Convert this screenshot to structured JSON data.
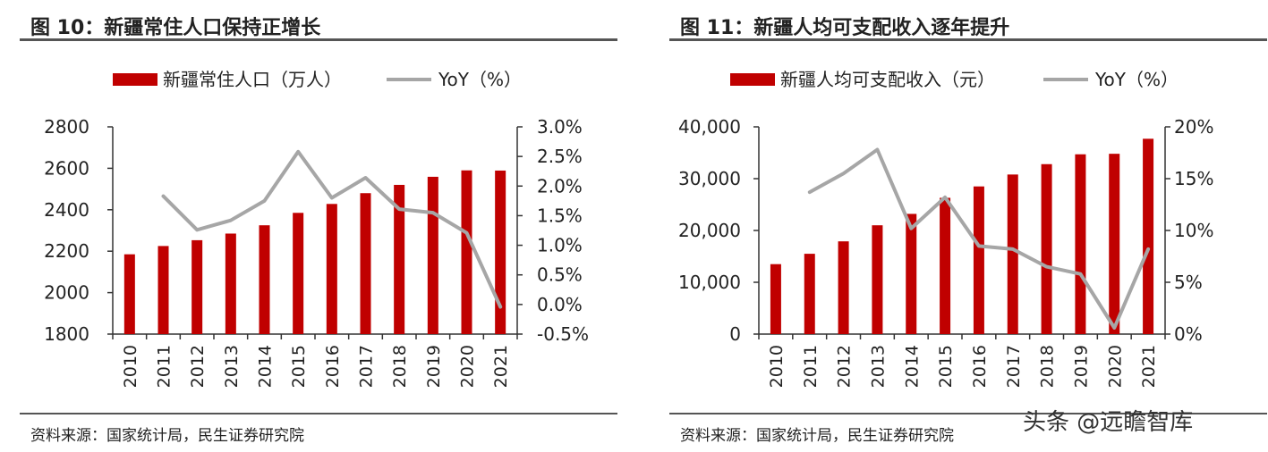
{
  "panels": [
    {
      "title": "图 10：新疆常住人口保持正增长",
      "source": "资料来源：国家统计局，民生证券研究院",
      "legend": {
        "bar": "新疆常住人口（万人）",
        "line": "YoY（%）"
      }
    },
    {
      "title": "图 11：新疆人均可支配收入逐年提升",
      "source": "资料来源：国家统计局，民生证券研究院",
      "legend": {
        "bar": "新疆人均可支配收入（元）",
        "line": "YoY（%）"
      }
    }
  ],
  "watermark": "头条 @远瞻智库",
  "colors": {
    "bar": "#c00000",
    "line": "#a6a6a6",
    "axis": "#333333",
    "rule": "#555555"
  },
  "chart_data": [
    {
      "type": "bar",
      "title": "图 10：新疆常住人口保持正增长",
      "categories": [
        "2010",
        "2011",
        "2012",
        "2013",
        "2014",
        "2015",
        "2016",
        "2017",
        "2018",
        "2019",
        "2020",
        "2021"
      ],
      "series": [
        {
          "name": "新疆常住人口（万人）",
          "type": "bar",
          "axis": "left",
          "values": [
            2185,
            2225,
            2253,
            2285,
            2325,
            2385,
            2428,
            2480,
            2520,
            2559,
            2590,
            2589
          ]
        },
        {
          "name": "YoY（%）",
          "type": "line",
          "axis": "right",
          "values": [
            null,
            1.83,
            1.26,
            1.42,
            1.75,
            2.58,
            1.8,
            2.14,
            1.61,
            1.55,
            1.21,
            -0.04
          ]
        }
      ],
      "y_left": {
        "min": 1800,
        "max": 2800,
        "ticks": [
          1800,
          2000,
          2200,
          2400,
          2600,
          2800
        ]
      },
      "y_right": {
        "min": -0.5,
        "max": 3.0,
        "ticks": [
          -0.5,
          0,
          0.5,
          1.0,
          1.5,
          2.0,
          2.5,
          3.0
        ],
        "tick_labels": [
          "-0.5%",
          "0.0%",
          "0.5%",
          "1.0%",
          "1.5%",
          "2.0%",
          "2.5%",
          "3.0%"
        ]
      },
      "legend_position": "top"
    },
    {
      "type": "bar",
      "title": "图 11：新疆人均可支配收入逐年提升",
      "categories": [
        "2010",
        "2011",
        "2012",
        "2013",
        "2014",
        "2015",
        "2016",
        "2017",
        "2018",
        "2019",
        "2020",
        "2021"
      ],
      "series": [
        {
          "name": "新疆人均可支配收入（元）",
          "type": "bar",
          "axis": "left",
          "values": [
            13500,
            15500,
            17900,
            21000,
            23200,
            26300,
            28500,
            30800,
            32800,
            34700,
            34800,
            37700
          ]
        },
        {
          "name": "YoY（%）",
          "type": "line",
          "axis": "right",
          "values": [
            null,
            13.7,
            15.5,
            17.8,
            10.2,
            13.2,
            8.5,
            8.2,
            6.5,
            5.8,
            0.6,
            8.2
          ]
        }
      ],
      "y_left": {
        "min": 0,
        "max": 40000,
        "ticks": [
          0,
          10000,
          20000,
          30000,
          40000
        ],
        "tick_labels": [
          "0",
          "10,000",
          "20,000",
          "30,000",
          "40,000"
        ]
      },
      "y_right": {
        "min": 0,
        "max": 20,
        "ticks": [
          0,
          5,
          10,
          15,
          20
        ],
        "tick_labels": [
          "0%",
          "5%",
          "10%",
          "15%",
          "20%"
        ]
      },
      "legend_position": "top"
    }
  ]
}
